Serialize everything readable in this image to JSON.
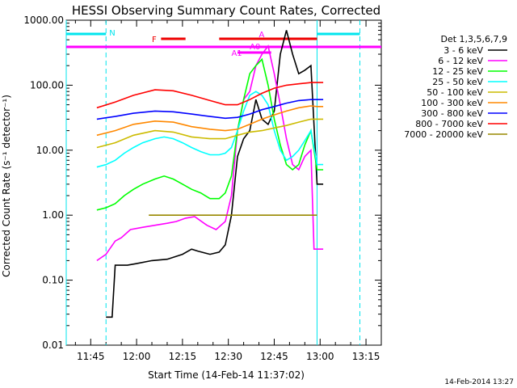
{
  "chart_data": {
    "type": "line",
    "title": "HESSI Observing Summary Count Rates, Corrected",
    "xlabel": "Start Time (14-Feb-14 11:37:02)",
    "ylabel": "Corrected Count Rate (s⁻¹ detector⁻¹)",
    "ylim": [
      0.01,
      1000
    ],
    "yscale": "log",
    "y_tick_labels": [
      "1000.00",
      "100.00",
      "10.00",
      "1.00",
      "0.10",
      "0.01"
    ],
    "y_tick_values": [
      1000,
      100,
      10,
      1,
      0.1,
      0.01
    ],
    "xlim": [
      "11:37",
      "13:20"
    ],
    "x_tick_labels": [
      "11:45",
      "12:00",
      "12:15",
      "12:30",
      "12:45",
      "13:00",
      "13:15"
    ],
    "legend_header": "Det 1,3,5,6,7,9",
    "legend_position": "top-right",
    "footer_date": "14-Feb-2014 13:27",
    "series": [
      {
        "name": "3 - 6 keV",
        "color": "#000000",
        "points": [
          [
            "11:50",
            0.027
          ],
          [
            "11:52",
            0.027
          ],
          [
            "11:53",
            0.17
          ],
          [
            "11:57",
            0.17
          ],
          [
            "12:00",
            0.18
          ],
          [
            "12:05",
            0.2
          ],
          [
            "12:10",
            0.21
          ],
          [
            "12:15",
            0.25
          ],
          [
            "12:18",
            0.3
          ],
          [
            "12:20",
            0.28
          ],
          [
            "12:24",
            0.25
          ],
          [
            "12:27",
            0.27
          ],
          [
            "12:29",
            0.35
          ],
          [
            "12:31",
            1.0
          ],
          [
            "12:33",
            8
          ],
          [
            "12:35",
            15
          ],
          [
            "12:37",
            20
          ],
          [
            "12:39",
            60
          ],
          [
            "12:41",
            30
          ],
          [
            "12:43",
            25
          ],
          [
            "12:45",
            40
          ],
          [
            "12:47",
            300
          ],
          [
            "12:49",
            700
          ],
          [
            "12:51",
            300
          ],
          [
            "12:53",
            150
          ],
          [
            "12:55",
            170
          ],
          [
            "12:57",
            200
          ],
          [
            "12:59",
            3
          ],
          [
            "13:01",
            3
          ]
        ]
      },
      {
        "name": "6 - 12 keV",
        "color": "#ff00ff",
        "points": [
          [
            "11:47",
            0.2
          ],
          [
            "11:50",
            0.25
          ],
          [
            "11:53",
            0.4
          ],
          [
            "11:55",
            0.45
          ],
          [
            "11:58",
            0.6
          ],
          [
            "12:02",
            0.65
          ],
          [
            "12:06",
            0.7
          ],
          [
            "12:10",
            0.75
          ],
          [
            "12:13",
            0.8
          ],
          [
            "12:16",
            0.9
          ],
          [
            "12:19",
            0.95
          ],
          [
            "12:23",
            0.7
          ],
          [
            "12:26",
            0.6
          ],
          [
            "12:29",
            0.8
          ],
          [
            "12:31",
            2
          ],
          [
            "12:33",
            20
          ],
          [
            "12:35",
            60
          ],
          [
            "12:37",
            80
          ],
          [
            "12:39",
            200
          ],
          [
            "12:41",
            300
          ],
          [
            "12:43",
            400
          ],
          [
            "12:45",
            150
          ],
          [
            "12:47",
            50
          ],
          [
            "12:49",
            15
          ],
          [
            "12:51",
            6
          ],
          [
            "12:53",
            5
          ],
          [
            "12:55",
            8
          ],
          [
            "12:57",
            10
          ],
          [
            "12:58",
            0.3
          ],
          [
            "13:01",
            0.3
          ]
        ]
      },
      {
        "name": "12 - 25 keV",
        "color": "#00ff00",
        "points": [
          [
            "11:47",
            1.2
          ],
          [
            "11:50",
            1.3
          ],
          [
            "11:53",
            1.5
          ],
          [
            "11:56",
            2
          ],
          [
            "11:59",
            2.5
          ],
          [
            "12:02",
            3
          ],
          [
            "12:06",
            3.6
          ],
          [
            "12:09",
            4
          ],
          [
            "12:12",
            3.6
          ],
          [
            "12:15",
            3
          ],
          [
            "12:18",
            2.5
          ],
          [
            "12:21",
            2.2
          ],
          [
            "12:24",
            1.8
          ],
          [
            "12:27",
            1.8
          ],
          [
            "12:29",
            2.2
          ],
          [
            "12:31",
            4
          ],
          [
            "12:33",
            20
          ],
          [
            "12:35",
            60
          ],
          [
            "12:37",
            150
          ],
          [
            "12:39",
            200
          ],
          [
            "12:41",
            250
          ],
          [
            "12:43",
            100
          ],
          [
            "12:45",
            30
          ],
          [
            "12:47",
            12
          ],
          [
            "12:49",
            6
          ],
          [
            "12:51",
            5
          ],
          [
            "12:53",
            6
          ],
          [
            "12:55",
            12
          ],
          [
            "12:57",
            20
          ],
          [
            "12:59",
            5
          ],
          [
            "13:01",
            5
          ]
        ]
      },
      {
        "name": "25 - 50 keV",
        "color": "#00ffff",
        "points": [
          [
            "11:47",
            5.5
          ],
          [
            "11:50",
            6
          ],
          [
            "11:53",
            7
          ],
          [
            "11:56",
            9
          ],
          [
            "11:59",
            11
          ],
          [
            "12:02",
            13
          ],
          [
            "12:06",
            15
          ],
          [
            "12:09",
            16
          ],
          [
            "12:12",
            15
          ],
          [
            "12:15",
            13
          ],
          [
            "12:18",
            11
          ],
          [
            "12:21",
            9.5
          ],
          [
            "12:24",
            8.5
          ],
          [
            "12:27",
            8.5
          ],
          [
            "12:29",
            9
          ],
          [
            "12:31",
            11
          ],
          [
            "12:33",
            20
          ],
          [
            "12:35",
            40
          ],
          [
            "12:37",
            70
          ],
          [
            "12:39",
            80
          ],
          [
            "12:41",
            70
          ],
          [
            "12:43",
            50
          ],
          [
            "12:45",
            20
          ],
          [
            "12:47",
            10
          ],
          [
            "12:49",
            7
          ],
          [
            "12:51",
            8
          ],
          [
            "12:53",
            10
          ],
          [
            "12:55",
            14
          ],
          [
            "12:57",
            20
          ],
          [
            "12:59",
            6
          ],
          [
            "13:01",
            6
          ]
        ]
      },
      {
        "name": "50 - 100 keV",
        "color": "#ccbb00",
        "points": [
          [
            "11:47",
            11
          ],
          [
            "11:53",
            13
          ],
          [
            "11:59",
            17
          ],
          [
            "12:06",
            20
          ],
          [
            "12:12",
            19
          ],
          [
            "12:18",
            16
          ],
          [
            "12:24",
            15
          ],
          [
            "12:29",
            15
          ],
          [
            "12:33",
            17
          ],
          [
            "12:37",
            19
          ],
          [
            "12:41",
            20
          ],
          [
            "12:45",
            22
          ],
          [
            "12:49",
            24
          ],
          [
            "12:53",
            27
          ],
          [
            "12:57",
            30
          ],
          [
            "12:59",
            30
          ],
          [
            "13:01",
            30
          ]
        ]
      },
      {
        "name": "100 - 300 keV",
        "color": "#ff8800",
        "points": [
          [
            "11:47",
            17
          ],
          [
            "11:53",
            20
          ],
          [
            "11:59",
            25
          ],
          [
            "12:06",
            28
          ],
          [
            "12:12",
            27
          ],
          [
            "12:18",
            23
          ],
          [
            "12:24",
            21
          ],
          [
            "12:29",
            20
          ],
          [
            "12:33",
            21
          ],
          [
            "12:37",
            25
          ],
          [
            "12:41",
            30
          ],
          [
            "12:45",
            35
          ],
          [
            "12:49",
            40
          ],
          [
            "12:53",
            45
          ],
          [
            "12:57",
            48
          ],
          [
            "12:59",
            47
          ],
          [
            "13:01",
            47
          ]
        ]
      },
      {
        "name": "300 - 800 keV",
        "color": "#0000ff",
        "points": [
          [
            "11:47",
            30
          ],
          [
            "11:53",
            33
          ],
          [
            "11:59",
            37
          ],
          [
            "12:06",
            40
          ],
          [
            "12:12",
            39
          ],
          [
            "12:18",
            36
          ],
          [
            "12:24",
            33
          ],
          [
            "12:29",
            31
          ],
          [
            "12:33",
            32
          ],
          [
            "12:37",
            36
          ],
          [
            "12:41",
            42
          ],
          [
            "12:45",
            47
          ],
          [
            "12:49",
            53
          ],
          [
            "12:53",
            58
          ],
          [
            "12:57",
            60
          ],
          [
            "12:59",
            60
          ],
          [
            "13:01",
            60
          ]
        ]
      },
      {
        "name": "800 - 7000 keV",
        "color": "#ff0000",
        "points": [
          [
            "11:47",
            45
          ],
          [
            "11:53",
            55
          ],
          [
            "11:59",
            70
          ],
          [
            "12:06",
            85
          ],
          [
            "12:12",
            82
          ],
          [
            "12:18",
            70
          ],
          [
            "12:24",
            58
          ],
          [
            "12:29",
            50
          ],
          [
            "12:33",
            50
          ],
          [
            "12:37",
            60
          ],
          [
            "12:41",
            75
          ],
          [
            "12:45",
            90
          ],
          [
            "12:49",
            100
          ],
          [
            "12:53",
            105
          ],
          [
            "12:57",
            110
          ],
          [
            "12:59",
            110
          ],
          [
            "13:01",
            110
          ]
        ]
      },
      {
        "name": "7000 - 20000 keV",
        "color": "#998800",
        "points": [
          [
            "12:04",
            1.0
          ],
          [
            "12:08",
            1.0
          ],
          [
            "12:53",
            1.0
          ],
          [
            "12:59",
            1.0
          ]
        ]
      }
    ],
    "annotations": {
      "night_marker_label": "N",
      "flare_flag_label": "F",
      "attenuator_label": "A1",
      "attenuator_label_2": "A0",
      "attenuator_label_3": "A"
    }
  }
}
